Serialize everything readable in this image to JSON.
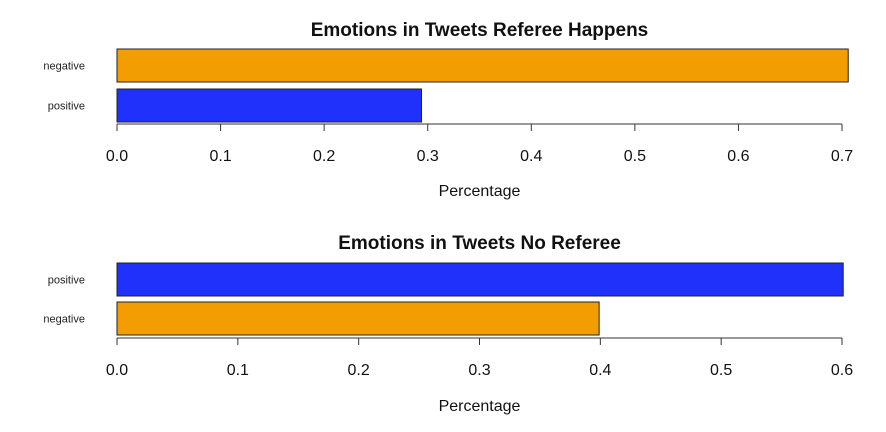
{
  "chart_data": [
    {
      "type": "bar",
      "orientation": "horizontal",
      "title": "Emotions in Tweets Referee Happens",
      "xlabel": "Percentage",
      "ylabel": "",
      "categories": [
        "negative",
        "positive"
      ],
      "values": [
        0.706,
        0.294
      ],
      "colors": [
        "#F29E02",
        "#1F31FB"
      ],
      "xlim": [
        0,
        0.7
      ],
      "xticks": [
        "0.0",
        "0.1",
        "0.2",
        "0.3",
        "0.4",
        "0.5",
        "0.6",
        "0.7"
      ],
      "grid": false,
      "legend": "none"
    },
    {
      "type": "bar",
      "orientation": "horizontal",
      "title": "Emotions in Tweets No Referee",
      "xlabel": "Percentage",
      "ylabel": "",
      "categories": [
        "positive",
        "negative"
      ],
      "values": [
        0.601,
        0.399
      ],
      "colors": [
        "#1F31FB",
        "#F29E02"
      ],
      "xlim": [
        0,
        0.6
      ],
      "xticks": [
        "0.0",
        "0.1",
        "0.2",
        "0.3",
        "0.4",
        "0.5",
        "0.6"
      ],
      "grid": false,
      "legend": "none"
    }
  ]
}
